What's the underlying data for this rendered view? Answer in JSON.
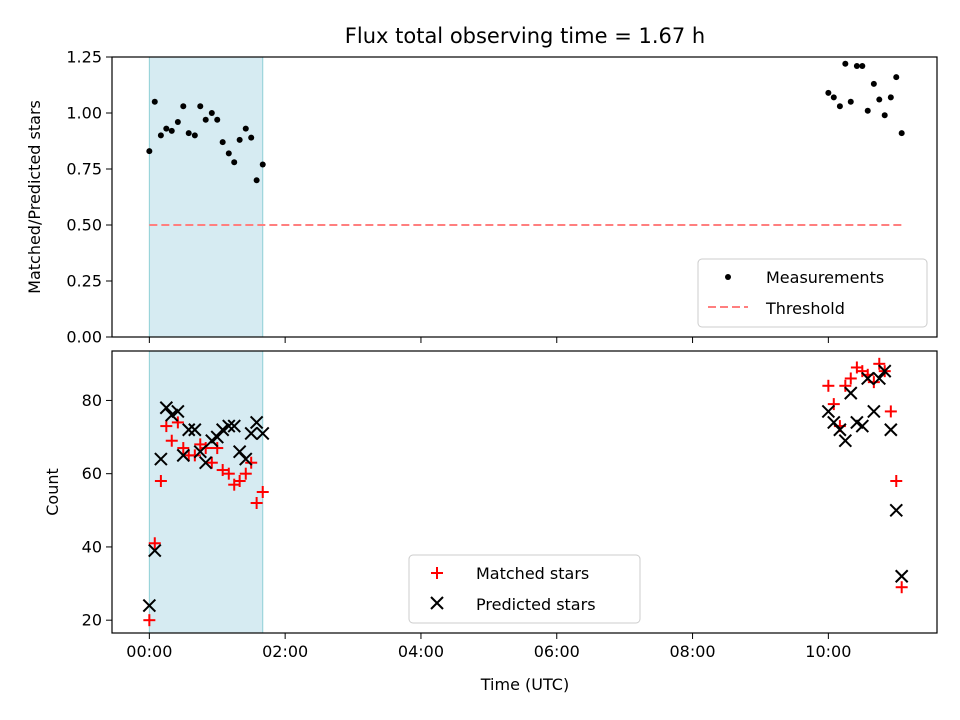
{
  "chart_data": [
    {
      "type": "scatter",
      "title": "Flux total observing time = 1.67 h",
      "xlabel": "",
      "ylabel": "Matched/Predicted stars",
      "xlim": [
        -0.55,
        11.6
      ],
      "ylim": [
        0.0,
        1.25
      ],
      "yticks": [
        0.0,
        0.25,
        0.5,
        0.75,
        1.0,
        1.25
      ],
      "ytick_labels": [
        "0.00",
        "0.25",
        "0.50",
        "0.75",
        "1.00",
        "1.25"
      ],
      "highlight_span": {
        "start": 0.0,
        "end": 1.67,
        "color": "#add8e6"
      },
      "legend_position": "lower-right",
      "legend": {
        "measurements": "Measurements",
        "threshold": "Threshold"
      },
      "series": [
        {
          "name": "Measurements",
          "kind": "points",
          "color": "#000000",
          "x": [
            0.0,
            0.08,
            0.17,
            0.25,
            0.33,
            0.42,
            0.5,
            0.58,
            0.67,
            0.75,
            0.83,
            0.92,
            1.0,
            1.08,
            1.17,
            1.25,
            1.33,
            1.42,
            1.5,
            1.58,
            1.67,
            10.0,
            10.08,
            10.17,
            10.25,
            10.33,
            10.42,
            10.5,
            10.58,
            10.67,
            10.75,
            10.83,
            10.92,
            11.0,
            11.08
          ],
          "y": [
            0.83,
            1.05,
            0.9,
            0.93,
            0.92,
            0.96,
            1.03,
            0.91,
            0.9,
            1.03,
            0.97,
            1.0,
            0.97,
            0.87,
            0.82,
            0.78,
            0.88,
            0.93,
            0.89,
            0.7,
            0.77,
            1.09,
            1.07,
            1.03,
            1.22,
            1.05,
            1.21,
            1.21,
            1.01,
            1.13,
            1.06,
            0.99,
            1.07,
            1.16,
            0.91
          ]
        },
        {
          "name": "Threshold",
          "kind": "dashed-line",
          "color": "#ff7f7f",
          "x": [
            0.0,
            11.08
          ],
          "y": [
            0.5,
            0.5
          ]
        }
      ]
    },
    {
      "type": "scatter",
      "title": "",
      "xlabel": "Time (UTC)",
      "ylabel": "Count",
      "xlim": [
        -0.55,
        11.6
      ],
      "ylim": [
        16.5,
        93.5
      ],
      "yticks": [
        20,
        40,
        60,
        80
      ],
      "ytick_labels": [
        "20",
        "40",
        "60",
        "80"
      ],
      "xticks": [
        0,
        2,
        4,
        6,
        8,
        10
      ],
      "xtick_labels": [
        "00:00",
        "02:00",
        "04:00",
        "06:00",
        "08:00",
        "10:00"
      ],
      "highlight_span": {
        "start": 0.0,
        "end": 1.67,
        "color": "#add8e6"
      },
      "legend_position": "lower-center",
      "legend": {
        "matched": "Matched stars",
        "predicted": "Predicted stars"
      },
      "series": [
        {
          "name": "Matched stars",
          "marker": "plus",
          "color": "#ff0000",
          "x": [
            0.0,
            0.08,
            0.17,
            0.25,
            0.33,
            0.42,
            0.5,
            0.58,
            0.67,
            0.75,
            0.83,
            0.92,
            1.0,
            1.08,
            1.17,
            1.25,
            1.33,
            1.42,
            1.5,
            1.58,
            1.67,
            10.0,
            10.08,
            10.17,
            10.25,
            10.33,
            10.42,
            10.5,
            10.58,
            10.67,
            10.75,
            10.83,
            10.92,
            11.0,
            11.08
          ],
          "y": [
            20,
            41,
            58,
            73,
            69,
            74,
            67,
            65,
            65,
            68,
            67,
            63,
            67,
            61,
            60,
            57,
            58,
            60,
            63,
            52,
            55,
            84,
            79,
            73,
            84,
            86,
            89,
            88,
            87,
            85,
            90,
            88,
            77,
            58,
            29
          ]
        },
        {
          "name": "Predicted stars",
          "marker": "x",
          "color": "#000000",
          "x": [
            0.0,
            0.08,
            0.17,
            0.25,
            0.33,
            0.42,
            0.5,
            0.58,
            0.67,
            0.75,
            0.83,
            0.92,
            1.0,
            1.08,
            1.17,
            1.25,
            1.33,
            1.42,
            1.5,
            1.58,
            1.67,
            10.0,
            10.08,
            10.17,
            10.25,
            10.33,
            10.42,
            10.5,
            10.58,
            10.67,
            10.75,
            10.83,
            10.92,
            11.0,
            11.08
          ],
          "y": [
            24,
            39,
            64,
            78,
            76,
            77,
            65,
            72,
            72,
            66,
            63,
            69,
            70,
            72,
            73,
            73,
            66,
            64,
            71,
            74,
            71,
            77,
            74,
            72,
            69,
            82,
            74,
            73,
            86,
            77,
            86,
            88,
            72,
            50,
            32
          ]
        }
      ]
    }
  ]
}
